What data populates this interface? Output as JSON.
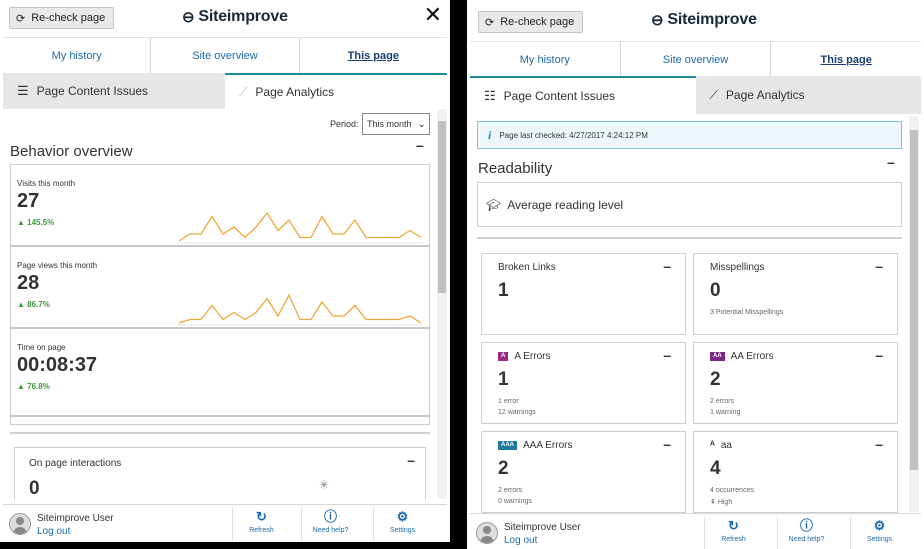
{
  "common": {
    "recheck_label": "Re-check page",
    "logo_text": "Siteimprove",
    "close_glyph": "✕",
    "nav": [
      "My history",
      "Site overview",
      "This page"
    ],
    "tabs": [
      "Page Content Issues",
      "Page Analytics"
    ],
    "footer": {
      "user_name": "Siteimprove User",
      "logout": "Log out",
      "refresh": "Refresh",
      "help": "Need help?",
      "settings": "Settings"
    },
    "accent": "#1f8b9a",
    "link_color": "#1e6aa8",
    "positive_color": "#3b9a3b",
    "spark_color": "#f0a63a"
  },
  "analytics": {
    "period_label": "Period:",
    "period_value": "This month",
    "title": "Behavior overview",
    "metrics": [
      {
        "label": "Visits this month",
        "value": "27",
        "change": "145.5%"
      },
      {
        "label": "Page views this month",
        "value": "28",
        "change": "86.7%"
      },
      {
        "label": "Time on page",
        "value": "00:08:37",
        "change": "76.8%"
      }
    ],
    "sparklines": [
      [
        0,
        2,
        2,
        7,
        2,
        4,
        1,
        4,
        8,
        3,
        6,
        1,
        1,
        7,
        2,
        2,
        6,
        1,
        1,
        1,
        1,
        3,
        1
      ],
      [
        0,
        1,
        1,
        5,
        1,
        3,
        1,
        3,
        7,
        2,
        8,
        1,
        1,
        6,
        2,
        2,
        5,
        1,
        1,
        1,
        1,
        2,
        0
      ],
      []
    ],
    "interactions_label": "On page interactions",
    "interactions_value": "0"
  },
  "content_issues": {
    "last_checked": "Page last checked: 4/27/2017 4:24:12 PM",
    "readability_title": "Readability",
    "reading_level_label": "Average reading level",
    "cards": [
      {
        "title": "Broken Links",
        "value": "1",
        "sub1": "",
        "sub2": "",
        "badge": ""
      },
      {
        "title": "Misspellings",
        "value": "0",
        "sub1": "3 Potential Misspellings",
        "sub2": "",
        "badge": ""
      },
      {
        "title": "A Errors",
        "value": "1",
        "sub1": "1 error",
        "sub2": "12 warnings",
        "badge": "A"
      },
      {
        "title": "AA Errors",
        "value": "2",
        "sub1": "2 errors",
        "sub2": "1 warning",
        "badge": "AA"
      },
      {
        "title": "AAA Errors",
        "value": "2",
        "sub1": "2 errors",
        "sub2": "0 warnings",
        "badge": "AAA"
      },
      {
        "title": "aa",
        "value": "4",
        "sub1": "4 occurrences",
        "sub2": "High",
        "badge": "ᴬ"
      }
    ],
    "badge_colors": {
      "A": "#9c2a86",
      "AA": "#7a2a86",
      "AAA": "#1f7aa0"
    }
  }
}
